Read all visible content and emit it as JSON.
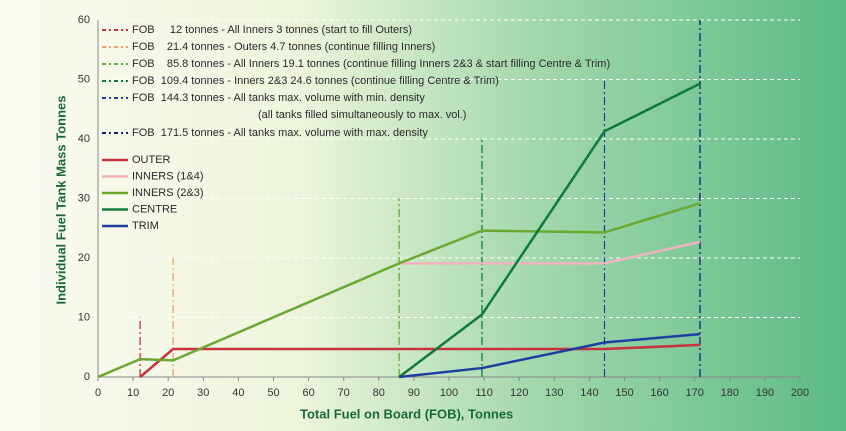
{
  "chart_data": {
    "type": "line",
    "xlabel": "Total Fuel on Board (FOB), Tonnes",
    "ylabel": "Individual Fuel Tank Mass Tonnes",
    "xlim": [
      0,
      200
    ],
    "ylim": [
      0,
      60
    ],
    "xticks": [
      0,
      10,
      20,
      30,
      40,
      50,
      60,
      70,
      80,
      90,
      100,
      110,
      120,
      130,
      140,
      150,
      160,
      170,
      180,
      190,
      200
    ],
    "yticks": [
      0,
      10,
      20,
      30,
      40,
      50,
      60
    ],
    "grid": true,
    "series": [
      {
        "name": "OUTER",
        "color": "#c8323a",
        "x": [
          12,
          21.4,
          144.3,
          171.5
        ],
        "values": [
          0,
          4.7,
          4.7,
          5.4
        ]
      },
      {
        "name": "INNERS (1&4)",
        "color": "#f0b4c0",
        "x": [
          85.8,
          144.3,
          171.5
        ],
        "values": [
          19.1,
          19.1,
          22.7
        ]
      },
      {
        "name": "INNERS (2&3)",
        "color": "#6aa832",
        "x": [
          0,
          12,
          21.4,
          85.8,
          109.4,
          144.3,
          171.5
        ],
        "values": [
          0,
          3,
          2.8,
          19.1,
          24.6,
          24.3,
          29.2
        ]
      },
      {
        "name": "CENTRE",
        "color": "#0f7a3c",
        "x": [
          85.8,
          109.4,
          144.3,
          171.5
        ],
        "values": [
          0,
          10.5,
          41.3,
          49.3
        ]
      },
      {
        "name": "TRIM",
        "color": "#1f3fa0",
        "x": [
          85.8,
          109.4,
          144.3,
          171.5
        ],
        "values": [
          0,
          1.5,
          5.8,
          7.2
        ]
      }
    ],
    "annotations": [
      {
        "text": "FOB     12 tonnes - All Inners 3 tonnes (start to fill Outers)",
        "x": 12,
        "top": 10,
        "color": "#c8323a"
      },
      {
        "text": "FOB    21.4 tonnes - Outers 4.7 tonnes (continue filling Inners)",
        "x": 21.4,
        "top": 20,
        "color": "#f0a070"
      },
      {
        "text": "FOB    85.8 tonnes - All Inners 19.1 tonnes (continue filling Inners 2&3 & start filling Centre & Trim)",
        "x": 85.8,
        "top": 30,
        "color": "#6aa832"
      },
      {
        "text": "FOB  109.4 tonnes - Inners 2&3 24.6 tonnes (continue filling Centre & Trim)",
        "x": 109.4,
        "top": 40,
        "color": "#0f7a3c"
      },
      {
        "text": "FOB  144.3 tonnes - All tanks max. volume with min. density",
        "x": 144.3,
        "top": 50,
        "color": "#1f3fa0"
      },
      {
        "text": "FOB  171.5 tonnes - All tanks max. volume with max. density",
        "x": 171.5,
        "top": 60,
        "color": "#10206a"
      }
    ],
    "note": "(all tanks filled simultaneously to max. vol.)"
  }
}
